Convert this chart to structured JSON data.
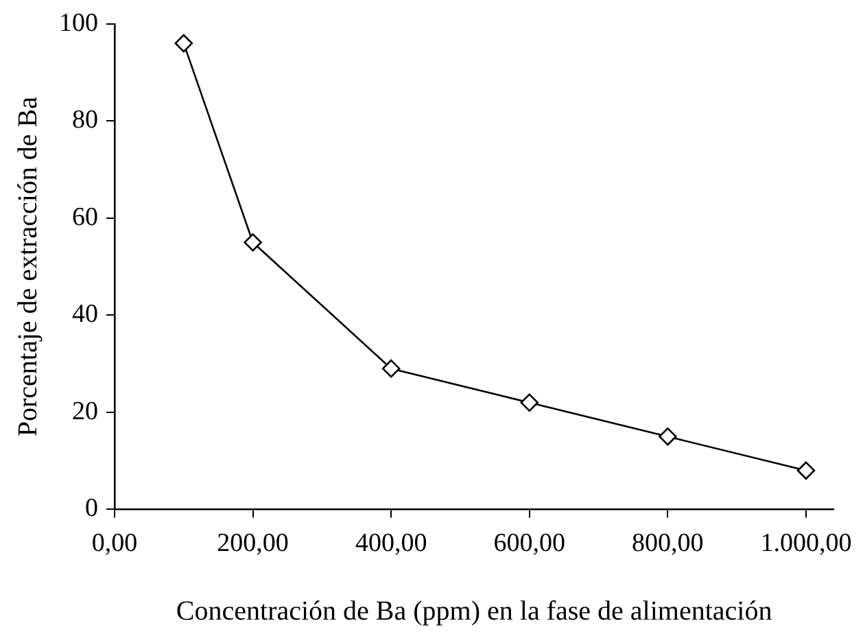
{
  "chart_data": {
    "type": "line",
    "xlabel": "Concentración de Ba (ppm) en la fase de alimentación",
    "ylabel": "Porcentaje de extracción de Ba",
    "x": [
      100,
      200,
      400,
      600,
      800,
      1000
    ],
    "series": [
      {
        "color": "#000000",
        "values": [
          96,
          55,
          29,
          22,
          15,
          8
        ]
      }
    ],
    "xlim": [
      0,
      1040
    ],
    "xticks": [
      {
        "value": 0,
        "label": "0,00"
      },
      {
        "value": 200,
        "label": "200,00"
      },
      {
        "value": 400,
        "label": "400,00"
      },
      {
        "value": 600,
        "label": "600,00"
      },
      {
        "value": 800,
        "label": "800,00"
      },
      {
        "value": 1000,
        "label": "1.000,00"
      }
    ],
    "ylim": [
      0,
      100
    ],
    "yticks": [
      0,
      20,
      40,
      60,
      80,
      100
    ],
    "grid": false,
    "legend": false,
    "marker": "diamond",
    "line_style": "solid"
  }
}
